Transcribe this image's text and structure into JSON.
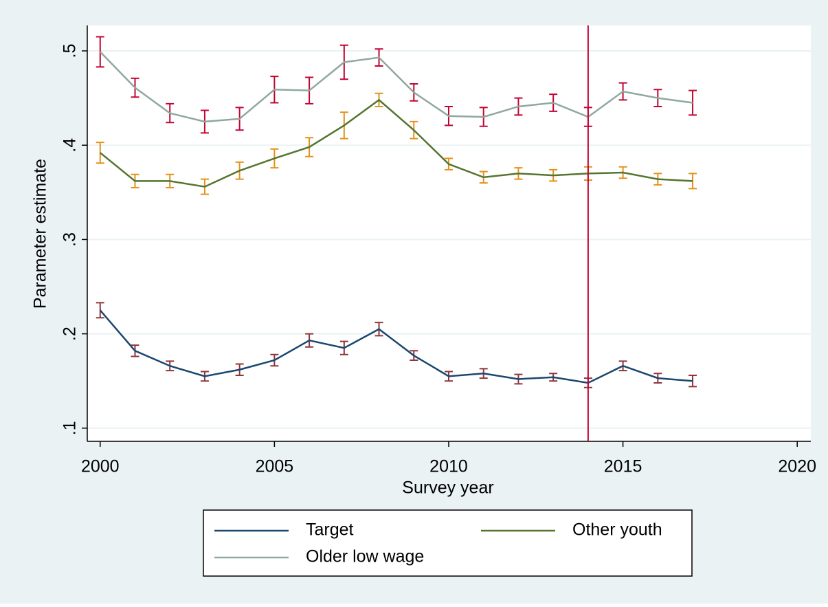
{
  "chart_data": {
    "type": "line",
    "x_label": "Survey year",
    "y_label": "Parameter estimate",
    "x": [
      2000,
      2001,
      2002,
      2003,
      2004,
      2005,
      2006,
      2007,
      2008,
      2009,
      2010,
      2011,
      2012,
      2013,
      2014,
      2015,
      2016,
      2017
    ],
    "series": [
      {
        "name": "Target",
        "color": "#1a476f",
        "error_color": "#90353b",
        "values": [
          0.225,
          0.182,
          0.166,
          0.155,
          0.162,
          0.172,
          0.193,
          0.185,
          0.205,
          0.177,
          0.155,
          0.158,
          0.152,
          0.154,
          0.148,
          0.166,
          0.153,
          0.15
        ],
        "errors": [
          0.008,
          0.006,
          0.005,
          0.005,
          0.006,
          0.006,
          0.007,
          0.007,
          0.007,
          0.005,
          0.005,
          0.005,
          0.005,
          0.004,
          0.005,
          0.005,
          0.005,
          0.006
        ]
      },
      {
        "name": "Other youth",
        "color": "#55752f",
        "error_color": "#e3921a",
        "values": [
          0.392,
          0.362,
          0.362,
          0.356,
          0.373,
          0.386,
          0.398,
          0.421,
          0.448,
          0.416,
          0.38,
          0.366,
          0.37,
          0.368,
          0.37,
          0.371,
          0.364,
          0.362
        ],
        "errors": [
          0.011,
          0.007,
          0.007,
          0.008,
          0.009,
          0.01,
          0.01,
          0.014,
          0.007,
          0.009,
          0.006,
          0.006,
          0.006,
          0.006,
          0.007,
          0.006,
          0.006,
          0.008
        ]
      },
      {
        "name": "Older low wage",
        "color": "#8fa8a0",
        "error_color": "#c10534",
        "values": [
          0.499,
          0.461,
          0.434,
          0.425,
          0.428,
          0.459,
          0.458,
          0.488,
          0.493,
          0.456,
          0.431,
          0.43,
          0.441,
          0.445,
          0.43,
          0.457,
          0.45,
          0.445
        ],
        "errors": [
          0.016,
          0.01,
          0.01,
          0.012,
          0.012,
          0.014,
          0.014,
          0.018,
          0.009,
          0.009,
          0.01,
          0.01,
          0.009,
          0.009,
          0.01,
          0.009,
          0.009,
          0.013
        ]
      }
    ],
    "xline": 2014,
    "xline_color": "#c10534",
    "xlim": [
      1999.63,
      2020.39
    ],
    "ylim": [
      0.086,
      0.527
    ],
    "xticks": [
      2000,
      2005,
      2010,
      2015,
      2020
    ],
    "yticks": [
      {
        "value": 0.1,
        "label": ".1"
      },
      {
        "value": 0.2,
        "label": ".2"
      },
      {
        "value": 0.3,
        "label": ".3"
      },
      {
        "value": 0.4,
        "label": ".4"
      },
      {
        "value": 0.5,
        "label": ".5"
      }
    ],
    "grid": true
  }
}
